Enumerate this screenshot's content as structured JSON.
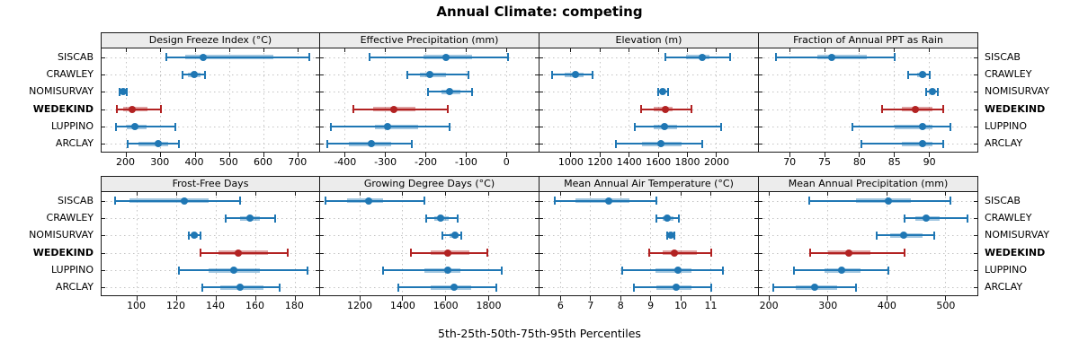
{
  "title": "Annual Climate: competing",
  "footer": "5th-25th-50th-75th-95th Percentiles",
  "categories": [
    "SISCAB",
    "CRAWLEY",
    "NOMISURVAY",
    "WEDEKIND",
    "LUPPINO",
    "ARCLAY"
  ],
  "highlight_category": "WEDEKIND",
  "colors": {
    "series_default": "#1f77b4",
    "series_highlight": "#b22222",
    "strip_background": "#ececec",
    "panel_border": "#1a1a1a",
    "gridline": "#c3c3c3"
  },
  "chart_data": {
    "type": "percentile-interval-dotplot",
    "percentile_levels": [
      5,
      25,
      50,
      75,
      95
    ],
    "legend_position": "none",
    "grid": "dotted",
    "panels": [
      {
        "title": "Design Freeze Index (°C)",
        "row": 0,
        "col": 0,
        "xlim": [
          128,
          766
        ],
        "ticks": [
          200,
          300,
          400,
          500,
          600,
          700
        ],
        "series": [
          [
            315,
            372,
            424,
            628,
            733
          ],
          [
            363,
            380,
            398,
            415,
            430
          ],
          [
            181,
            186,
            190,
            196,
            202
          ],
          [
            172,
            192,
            218,
            262,
            300
          ],
          [
            170,
            200,
            225,
            260,
            342
          ],
          [
            204,
            235,
            292,
            322,
            352
          ]
        ]
      },
      {
        "title": "Effective Precipitation (mm)",
        "row": 0,
        "col": 1,
        "xlim": [
          -462,
          82
        ],
        "ticks": [
          -400,
          -300,
          -200,
          -100,
          0
        ],
        "series": [
          [
            -340,
            -205,
            -150,
            -85,
            5
          ],
          [
            -245,
            -215,
            -190,
            -150,
            -95
          ],
          [
            -195,
            -160,
            -140,
            -115,
            -85
          ],
          [
            -380,
            -330,
            -280,
            -225,
            -145
          ],
          [
            -435,
            -325,
            -295,
            -220,
            -140
          ],
          [
            -445,
            -390,
            -335,
            -285,
            -235
          ]
        ]
      },
      {
        "title": "Elevation (m)",
        "row": 0,
        "col": 2,
        "xlim": [
          785,
          2290
        ],
        "ticks": [
          1000,
          1200,
          1400,
          1600,
          1800,
          2000
        ],
        "series": [
          [
            1650,
            1790,
            1900,
            1950,
            2090
          ],
          [
            870,
            960,
            1030,
            1090,
            1150
          ],
          [
            1600,
            1615,
            1630,
            1650,
            1665
          ],
          [
            1480,
            1570,
            1650,
            1700,
            1830
          ],
          [
            1440,
            1570,
            1640,
            1730,
            2030
          ],
          [
            1310,
            1490,
            1620,
            1760,
            1900
          ]
        ]
      },
      {
        "title": "Fraction of Annual PPT as Rain",
        "row": 0,
        "col": 3,
        "xlim": [
          65.6,
          97
        ],
        "ticks": [
          70,
          75,
          80,
          85,
          90
        ],
        "series": [
          [
            68,
            74,
            76,
            81,
            85
          ],
          [
            87,
            88.3,
            89,
            89.5,
            90
          ],
          [
            89.5,
            90.2,
            90.5,
            90.8,
            91.2
          ],
          [
            83.2,
            86,
            88,
            90.5,
            92
          ],
          [
            79,
            85,
            89,
            90.5,
            93
          ],
          [
            80.3,
            86,
            89,
            90.5,
            92
          ]
        ]
      },
      {
        "title": "Frost-Free Days",
        "row": 1,
        "col": 0,
        "xlim": [
          82,
          193
        ],
        "ticks": [
          100,
          120,
          140,
          160,
          180
        ],
        "series": [
          [
            89,
            96,
            124,
            136,
            152
          ],
          [
            145,
            152,
            157,
            162,
            170
          ],
          [
            126,
            127.5,
            129,
            130.5,
            132
          ],
          [
            132,
            141,
            151,
            166,
            176
          ],
          [
            121,
            136,
            149,
            162,
            186
          ],
          [
            133,
            142,
            152,
            164,
            172
          ]
        ]
      },
      {
        "title": "Growing Degree Days (°C)",
        "row": 1,
        "col": 1,
        "xlim": [
          1016,
          2036
        ],
        "ticks": [
          1200,
          1400,
          1600,
          1800
        ],
        "series": [
          [
            1040,
            1140,
            1240,
            1310,
            1500
          ],
          [
            1510,
            1545,
            1575,
            1615,
            1655
          ],
          [
            1585,
            1620,
            1645,
            1660,
            1672
          ],
          [
            1440,
            1530,
            1610,
            1710,
            1795
          ],
          [
            1310,
            1500,
            1610,
            1670,
            1860
          ],
          [
            1380,
            1530,
            1640,
            1720,
            1835
          ]
        ]
      },
      {
        "title": "Mean Annual Air Temperature (°C)",
        "row": 1,
        "col": 2,
        "xlim": [
          5.3,
          12.6
        ],
        "ticks": [
          6,
          7,
          8,
          9,
          10,
          11
        ],
        "series": [
          [
            5.8,
            6.5,
            7.6,
            8.3,
            9.2
          ],
          [
            9.2,
            9.4,
            9.55,
            9.75,
            9.95
          ],
          [
            9.55,
            9.62,
            9.67,
            9.72,
            9.78
          ],
          [
            8.95,
            9.4,
            9.8,
            10.55,
            11.0
          ],
          [
            8.05,
            9.15,
            9.9,
            10.35,
            11.4
          ],
          [
            8.45,
            9.2,
            9.85,
            10.35,
            11.0
          ]
        ]
      },
      {
        "title": "Mean Annual Precipitation (mm)",
        "row": 1,
        "col": 3,
        "xlim": [
          183,
          555
        ],
        "ticks": [
          200,
          300,
          400,
          500
        ],
        "series": [
          [
            268,
            348,
            403,
            440,
            508
          ],
          [
            430,
            448,
            467,
            490,
            537
          ],
          [
            383,
            405,
            428,
            460,
            480
          ],
          [
            270,
            300,
            335,
            372,
            430
          ],
          [
            242,
            295,
            323,
            355,
            402
          ],
          [
            208,
            245,
            277,
            315,
            348
          ]
        ]
      }
    ]
  }
}
